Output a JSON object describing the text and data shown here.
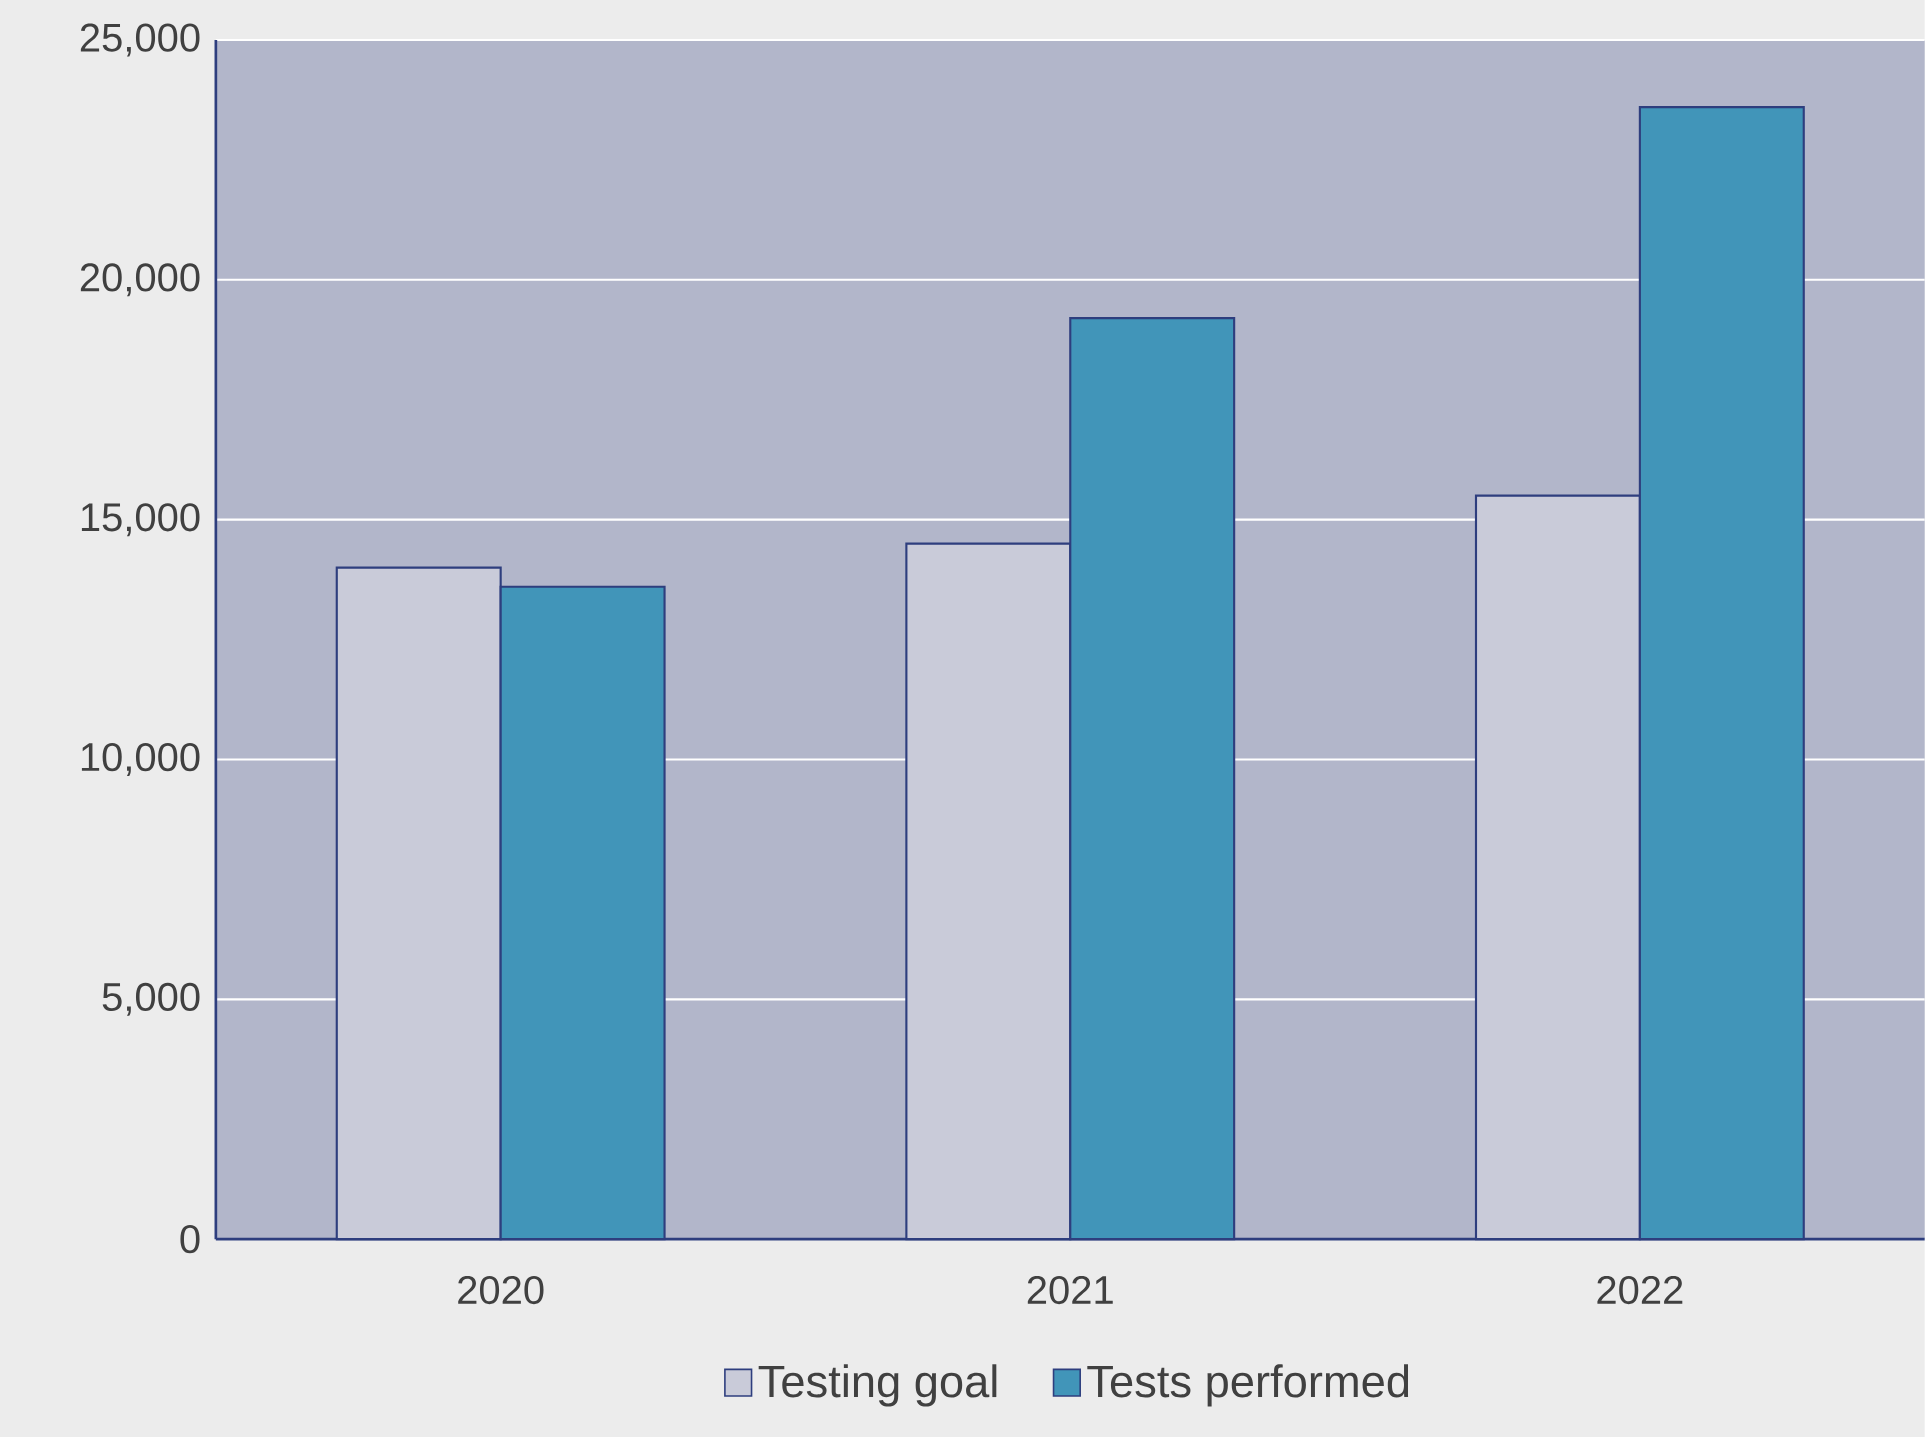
{
  "chart_data": {
    "type": "bar",
    "categories": [
      "2020",
      "2021",
      "2022"
    ],
    "series": [
      {
        "name": "Testing goal",
        "color": "#c9cbd9",
        "values": [
          14000,
          14500,
          15500
        ]
      },
      {
        "name": "Tests performed",
        "color": "#4195b9",
        "values": [
          13600,
          19200,
          23600
        ]
      }
    ],
    "ylim": [
      0,
      25000
    ],
    "yticks": [
      0,
      {
        "value": 5000,
        "label": "5,000"
      },
      {
        "value": 10000,
        "label": "10,000"
      },
      {
        "value": 15000,
        "label": "15,000"
      },
      {
        "value": 20000,
        "label": "20,000"
      },
      {
        "value": 25000,
        "label": "25,000"
      }
    ],
    "grid": "y",
    "legend": "bottom"
  }
}
